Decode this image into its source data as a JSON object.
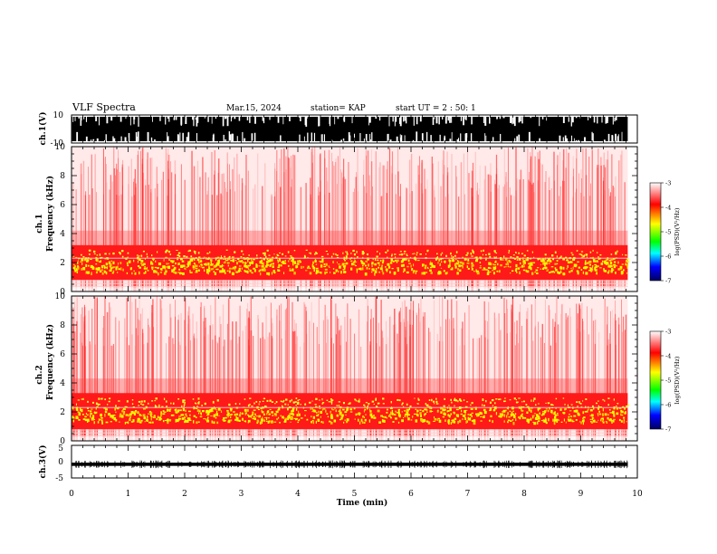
{
  "header": {
    "title": "VLF Spectra",
    "date": "Mar.15, 2024",
    "station": "station= KAP",
    "start": "start UT =  2 : 50: 1"
  },
  "chart_data": [
    {
      "type": "line",
      "panel": "ch1-waveform",
      "ylabel": "ch.1(V)",
      "ylim": [
        -10,
        10
      ],
      "yticks": [
        "10",
        "-10"
      ],
      "xlim": [
        0,
        10
      ],
      "description_series": [
        {
          "values": [
            10,
            -10,
            10,
            -9,
            10,
            -10,
            9,
            -10
          ]
        }
      ]
    },
    {
      "type": "heatmap",
      "panel": "ch1-spectrogram",
      "ylabel": "ch.1\nFrequency (kHz)",
      "ylim": [
        0,
        10
      ],
      "yticks": [
        "0",
        "2",
        "4",
        "6",
        "8",
        "10"
      ],
      "xlim": [
        0,
        10
      ],
      "data_end_min": 9.83,
      "band_khz": [
        0.8,
        3.2
      ],
      "colorbar": {
        "label": "log(PSD)(V²/Hz)",
        "range": [
          -7,
          -3
        ],
        "ticks": [
          "-3",
          "-4",
          "-5",
          "-6",
          "-7"
        ]
      }
    },
    {
      "type": "heatmap",
      "panel": "ch2-spectrogram",
      "ylabel": "ch.2\nFrequency (kHz)",
      "ylim": [
        0,
        10
      ],
      "yticks": [
        "0",
        "2",
        "4",
        "6",
        "8",
        "10"
      ],
      "xlim": [
        0,
        10
      ],
      "data_end_min": 9.83,
      "band_khz": [
        0.8,
        3.3
      ],
      "colorbar": {
        "label": "log(PSD)(V²/Hz)",
        "range": [
          -7,
          -3
        ],
        "ticks": [
          "-3",
          "-4",
          "-5",
          "-6",
          "-7"
        ]
      }
    },
    {
      "type": "line",
      "panel": "ch3-waveform",
      "ylabel": "ch.3(V)",
      "ylim": [
        -5,
        5
      ],
      "yticks": [
        "5",
        "0",
        "-5"
      ],
      "xlim": [
        0,
        10
      ],
      "level": -0.8
    }
  ],
  "xaxis": {
    "label": "Time (min)",
    "ticks": [
      "0",
      "1",
      "2",
      "3",
      "4",
      "5",
      "6",
      "7",
      "8",
      "9",
      "10"
    ]
  },
  "colors": {
    "spectrum": [
      "#ffffff",
      "#ff0000",
      "#ffff00",
      "#00ff00",
      "#00ffff",
      "#0000ff",
      "#000080"
    ]
  }
}
